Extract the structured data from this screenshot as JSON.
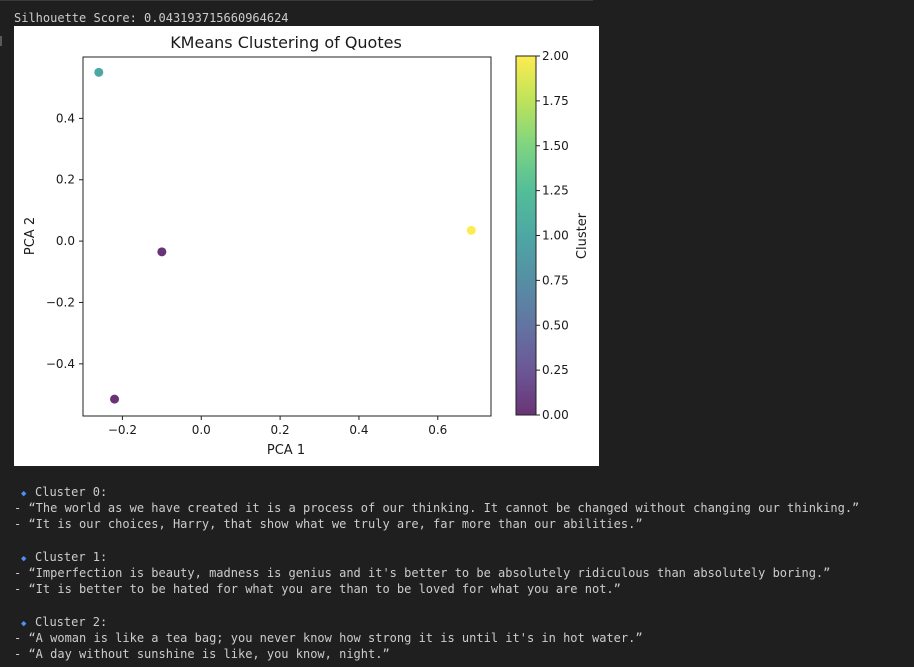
{
  "silhouette_text": "Silhouette Score: 0.043193715660964624",
  "chart_data": {
    "type": "scatter",
    "title": "KMeans Clustering of Quotes",
    "xlabel": "PCA 1",
    "ylabel": "PCA 2",
    "xlim": [
      -0.3,
      0.735
    ],
    "ylim": [
      -0.57,
      0.6
    ],
    "xticks": [
      -0.2,
      0.0,
      0.2,
      0.4,
      0.6
    ],
    "xtick_labels": [
      "−0.2",
      "0.0",
      "0.2",
      "0.4",
      "0.6"
    ],
    "yticks": [
      -0.4,
      -0.2,
      0.0,
      0.2,
      0.4
    ],
    "ytick_labels": [
      "−0.4",
      "−0.2",
      "0.0",
      "0.2",
      "0.4"
    ],
    "grid": false,
    "colormap": "viridis",
    "alpha": 0.8,
    "points": [
      {
        "x": -0.26,
        "y": 0.55,
        "cluster": 1
      },
      {
        "x": -0.1,
        "y": -0.035,
        "cluster": 0
      },
      {
        "x": -0.22,
        "y": -0.515,
        "cluster": 0
      },
      {
        "x": 0.685,
        "y": 0.035,
        "cluster": 2
      }
    ],
    "colorbar": {
      "label": "Cluster",
      "range": [
        0,
        2
      ],
      "ticks": [
        0.0,
        0.25,
        0.5,
        0.75,
        1.0,
        1.25,
        1.5,
        1.75,
        2.0
      ],
      "tick_labels": [
        "0.00",
        "0.25",
        "0.50",
        "0.75",
        "1.00",
        "1.25",
        "1.50",
        "1.75",
        "2.00"
      ]
    }
  },
  "clusters": [
    {
      "header": "Cluster 0:",
      "quotes": [
        "- “The world as we have created it is a process of our thinking. It cannot be changed without changing our thinking.”",
        "- “It is our choices, Harry, that show what we truly are, far more than our abilities.”"
      ]
    },
    {
      "header": "Cluster 1:",
      "quotes": [
        "- “Imperfection is beauty, madness is genius and it's better to be absolutely ridiculous than absolutely boring.”",
        "- “It is better to be hated for what you are than to be loved for what you are not.”"
      ]
    },
    {
      "header": "Cluster 2:",
      "quotes": [
        "- “A woman is like a tea bag; you never know how strong it is until it's in hot water.”",
        "- “A day without sunshine is like, you know, night.”"
      ]
    }
  ],
  "icons": {
    "bullet": "blue-diamond"
  },
  "colors": {
    "background": "#1f1f1f",
    "text": "#cccccc",
    "bullet": "#4f8ff7"
  }
}
